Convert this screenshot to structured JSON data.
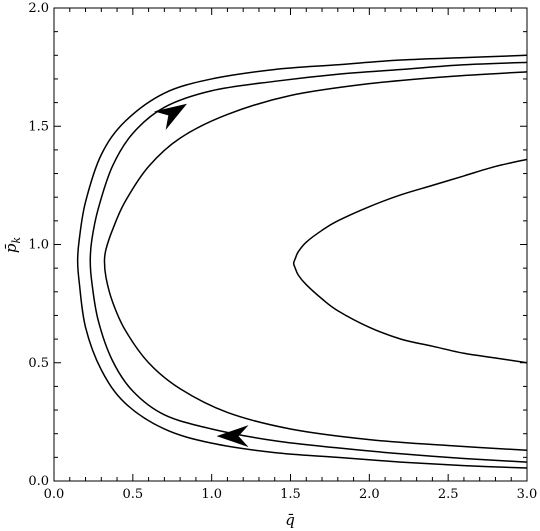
{
  "chart_data": {
    "type": "line",
    "title": "",
    "xlabel": "q̄",
    "ylabel": "p̄",
    "ylabel_subscript": "k",
    "xlim": [
      0.0,
      3.0
    ],
    "ylim": [
      0.0,
      2.0
    ],
    "grid": false,
    "xticks": [
      "0.0",
      "0.5",
      "1.0",
      "1.5",
      "2.0",
      "2.5",
      "3.0"
    ],
    "yticks": [
      "0.0",
      "0.5",
      "1.0",
      "1.5",
      "2.0"
    ],
    "line_color": "#000000",
    "series": [
      {
        "x": [
          3.0,
          2.6,
          2.2,
          1.8,
          1.4,
          1.0,
          0.7,
          0.45,
          0.3,
          0.2,
          0.16,
          0.15,
          0.16,
          0.2,
          0.3,
          0.45,
          0.7,
          1.0,
          1.4,
          1.8,
          2.2,
          2.6,
          3.0
        ],
        "y": [
          1.8,
          1.79,
          1.78,
          1.76,
          1.74,
          1.7,
          1.64,
          1.52,
          1.38,
          1.18,
          1.02,
          0.93,
          0.84,
          0.65,
          0.47,
          0.33,
          0.22,
          0.16,
          0.12,
          0.1,
          0.08,
          0.065,
          0.055
        ]
      },
      {
        "x": [
          3.0,
          2.6,
          2.2,
          1.8,
          1.4,
          1.0,
          0.7,
          0.5,
          0.37,
          0.28,
          0.24,
          0.23,
          0.24,
          0.28,
          0.37,
          0.5,
          0.7,
          1.0,
          1.4,
          1.8,
          2.2,
          2.6,
          3.0
        ],
        "y": [
          1.77,
          1.76,
          1.74,
          1.72,
          1.69,
          1.65,
          1.58,
          1.47,
          1.33,
          1.15,
          1.02,
          0.93,
          0.84,
          0.68,
          0.51,
          0.38,
          0.28,
          0.22,
          0.17,
          0.14,
          0.115,
          0.095,
          0.08
        ]
      },
      {
        "x": [
          3.0,
          2.5,
          2.0,
          1.5,
          1.1,
          0.8,
          0.6,
          0.45,
          0.37,
          0.33,
          0.32,
          0.33,
          0.37,
          0.45,
          0.6,
          0.8,
          1.1,
          1.5,
          2.0,
          2.5,
          3.0
        ],
        "y": [
          1.73,
          1.71,
          1.68,
          1.63,
          1.55,
          1.45,
          1.33,
          1.18,
          1.06,
          0.98,
          0.93,
          0.86,
          0.76,
          0.64,
          0.5,
          0.39,
          0.29,
          0.22,
          0.175,
          0.15,
          0.13
        ]
      },
      {
        "x": [
          3.0,
          2.8,
          2.6,
          2.4,
          2.2,
          2.0,
          1.8,
          1.7,
          1.6,
          1.55,
          1.53,
          1.52,
          1.53,
          1.55,
          1.6,
          1.7,
          1.8,
          2.0,
          2.2,
          2.4,
          2.6,
          2.8,
          3.0
        ],
        "y": [
          1.36,
          1.33,
          1.29,
          1.25,
          1.21,
          1.16,
          1.1,
          1.06,
          1.01,
          0.97,
          0.94,
          0.92,
          0.9,
          0.87,
          0.83,
          0.77,
          0.72,
          0.65,
          0.6,
          0.57,
          0.54,
          0.52,
          0.5
        ]
      }
    ],
    "arrows": [
      {
        "x": 0.78,
        "y": 1.57,
        "dir": "up-right"
      },
      {
        "x": 1.12,
        "y": 0.19,
        "dir": "left"
      }
    ]
  }
}
